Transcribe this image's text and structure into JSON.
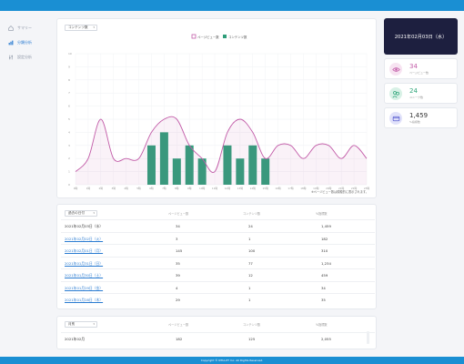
{
  "footer": "Copyright © NTIA-PT Inc. All Rights Reserved.",
  "sidebar": {
    "items": [
      {
        "label": "サマリー"
      },
      {
        "label": "分類分析"
      },
      {
        "label": "設定分析"
      }
    ]
  },
  "chart_card": {
    "select": "コンテンツ数",
    "note": "※ページビュー数は模擬的に表示されます。"
  },
  "date_card": "2021年02月03日（水）",
  "stats": [
    {
      "value": "34",
      "label": "ページビュー数",
      "color": "#c25ca8",
      "bg": "#f7e3f1",
      "icon": "eye-icon"
    },
    {
      "value": "24",
      "label": "ユニーク数",
      "color": "#2fa57a",
      "bg": "#d8f1e6",
      "icon": "users-icon"
    },
    {
      "value": "1,459",
      "label": "%指標数",
      "color": "#5b5fd1",
      "bg": "#e1e2fa",
      "icon": "card-icon"
    }
  ],
  "table1": {
    "select": "過去の日付",
    "headers": [
      "ページビュー数",
      "コンテンツ数",
      "%指標数"
    ],
    "rows": [
      {
        "date": "2021年02月03日（水）",
        "pv": "34",
        "cnt": "24",
        "pct": "1,459",
        "link": false
      },
      {
        "date": "2021年02月02日（火）",
        "pv": "3",
        "cnt": "1",
        "pct": "182",
        "link": true
      },
      {
        "date": "2021年02月01日（月）",
        "pv": "145",
        "cnt": "100",
        "pct": "310",
        "link": true
      },
      {
        "date": "2021年01月31日（日）",
        "pv": "35",
        "cnt": "77",
        "pct": "1,234",
        "link": true
      },
      {
        "date": "2021年01月30日（土）",
        "pv": "39",
        "cnt": "12",
        "pct": "459",
        "link": true
      },
      {
        "date": "2021年01月29日（金）",
        "pv": "4",
        "cnt": "1",
        "pct": "34",
        "link": true
      },
      {
        "date": "2021年01月28日（木）",
        "pv": "29",
        "cnt": "1",
        "pct": "35",
        "link": true
      }
    ]
  },
  "table2": {
    "select": "月別",
    "headers": [
      "ページビュー数",
      "コンテンツ数",
      "%指標数"
    ],
    "rows": [
      {
        "date": "2021年02月",
        "pv": "182",
        "cnt": "125",
        "pct": "2,055"
      }
    ]
  },
  "chart_data": {
    "type": "bar",
    "title": "",
    "categories": [
      "0時",
      "1時",
      "2時",
      "3時",
      "4時",
      "5時",
      "6時",
      "7時",
      "8時",
      "9時",
      "10時",
      "11時",
      "12時",
      "13時",
      "14時",
      "15時",
      "16時",
      "17時",
      "18時",
      "19時",
      "20時",
      "21時",
      "22時",
      "23時"
    ],
    "series": [
      {
        "name": "ページビュー数",
        "type": "line",
        "color": "#c25ca8",
        "values": [
          1,
          2,
          5,
          2,
          2,
          2,
          4,
          5,
          5,
          3,
          2,
          1,
          4,
          5,
          4,
          2,
          3,
          3,
          2,
          3,
          3,
          2,
          3,
          2
        ]
      },
      {
        "name": "コンテンツ数",
        "type": "bar",
        "color": "#2f9e7a",
        "values": [
          0,
          0,
          0,
          0,
          0,
          0,
          3,
          4,
          2,
          3,
          2,
          0,
          3,
          2,
          3,
          2,
          0,
          0,
          0,
          0,
          0,
          0,
          0,
          0
        ]
      }
    ],
    "ylim": [
      0,
      10
    ],
    "yticks": [
      0,
      1,
      2,
      3,
      4,
      5,
      6,
      7,
      8,
      9,
      10
    ],
    "legend": "top"
  }
}
